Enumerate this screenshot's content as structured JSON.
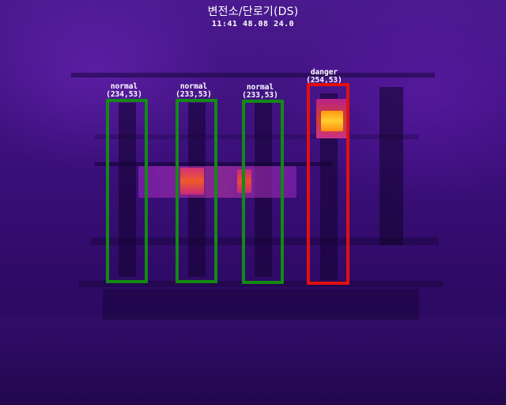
{
  "header": {
    "title": "변전소/단로기(DS)",
    "readout": "11:41 48.08 24.0"
  },
  "colors": {
    "normal": "#138a13",
    "danger": "#e01010",
    "text": "#ffffff"
  },
  "detections": [
    {
      "status": "normal",
      "value": "(234,53)"
    },
    {
      "status": "normal",
      "value": "(233,53)"
    },
    {
      "status": "normal",
      "value": "(233,53)"
    },
    {
      "status": "danger",
      "value": "(254,53)"
    }
  ]
}
